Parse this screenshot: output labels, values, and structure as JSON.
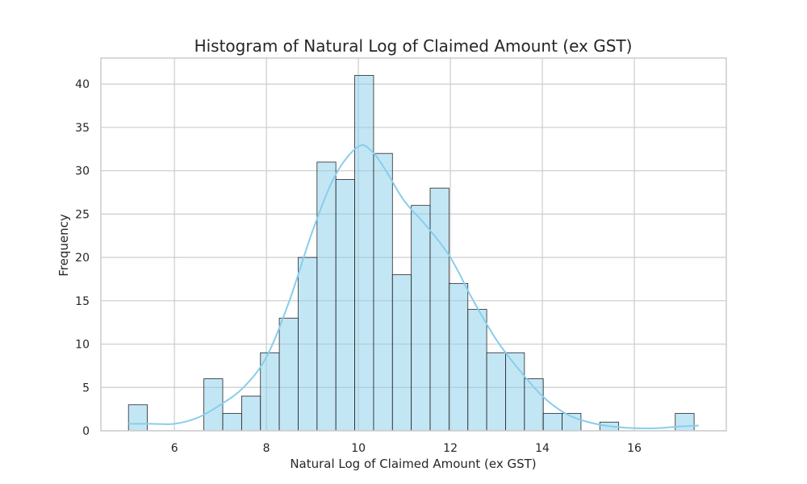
{
  "chart_data": {
    "type": "bar",
    "subtype": "histogram",
    "title": "Histogram of Natural Log of Claimed Amount (ex GST)",
    "xlabel": "Natural Log of Claimed Amount (ex GST)",
    "ylabel": "Frequency",
    "xlim": [
      4.4,
      18.0
    ],
    "ylim": [
      0,
      43
    ],
    "xticks": [
      6,
      8,
      10,
      12,
      14,
      16
    ],
    "yticks": [
      0,
      5,
      10,
      15,
      20,
      25,
      30,
      35,
      40
    ],
    "grid": true,
    "bin_start": 5.0,
    "bin_width": 0.41,
    "values": [
      3,
      0,
      0,
      0,
      6,
      2,
      4,
      9,
      13,
      20,
      31,
      29,
      41,
      32,
      18,
      26,
      28,
      17,
      14,
      9,
      9,
      6,
      2,
      2,
      0,
      1,
      0,
      0,
      0,
      2
    ],
    "kde": {
      "x": [
        5.0,
        5.5,
        6.0,
        6.5,
        7.0,
        7.5,
        8.0,
        8.5,
        9.0,
        9.5,
        10.0,
        10.3,
        10.6,
        11.0,
        11.5,
        12.0,
        12.5,
        13.0,
        13.5,
        14.0,
        14.5,
        15.0,
        15.5,
        16.0,
        16.5,
        17.0,
        17.4
      ],
      "y": [
        0.8,
        0.8,
        0.8,
        1.5,
        3.0,
        5.0,
        8.5,
        15.0,
        23.0,
        29.5,
        32.8,
        32.2,
        30.0,
        26.5,
        23.5,
        20.0,
        15.0,
        10.5,
        7.0,
        4.0,
        2.0,
        1.0,
        0.5,
        0.3,
        0.3,
        0.5,
        0.6
      ]
    },
    "colors": {
      "bar_fill": "#87ceeb",
      "bar_edge": "#262626",
      "kde_line": "#87ceeb",
      "grid": "#cccccc"
    }
  }
}
